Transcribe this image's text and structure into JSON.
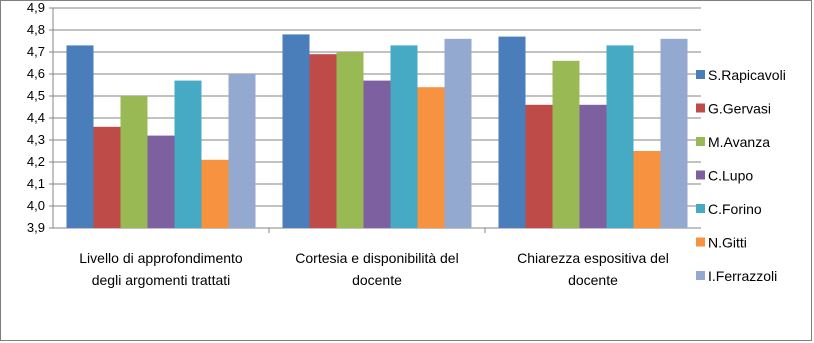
{
  "chart_data": {
    "type": "bar",
    "title": "",
    "xlabel": "",
    "ylabel": "",
    "ylim": [
      3.9,
      4.9
    ],
    "yticks": [
      "3,9",
      "4,0",
      "4,1",
      "4,2",
      "4,3",
      "4,4",
      "4,5",
      "4,6",
      "4,7",
      "4,8",
      "4,9"
    ],
    "grid": true,
    "legend_position": "right",
    "categories": [
      [
        "Livello di approfondimento",
        "degli argomenti trattati"
      ],
      [
        "Cortesia e disponibilità del",
        "docente"
      ],
      [
        "Chiarezza espositiva del",
        "docente"
      ]
    ],
    "series": [
      {
        "name": "S.Rapicavoli",
        "color": "#4a7ebb",
        "values": [
          4.73,
          4.78,
          4.77
        ]
      },
      {
        "name": "G.Gervasi",
        "color": "#be4b48",
        "values": [
          4.36,
          4.69,
          4.46
        ]
      },
      {
        "name": "M.Avanza",
        "color": "#98b954",
        "values": [
          4.5,
          4.7,
          4.66
        ]
      },
      {
        "name": "C.Lupo",
        "color": "#7d60a0",
        "values": [
          4.32,
          4.57,
          4.46
        ]
      },
      {
        "name": "C.Forino",
        "color": "#46aac5",
        "values": [
          4.57,
          4.73,
          4.73
        ]
      },
      {
        "name": "N.Gitti",
        "color": "#f69240",
        "values": [
          4.21,
          4.54,
          4.25
        ]
      },
      {
        "name": "I.Ferrazzoli",
        "color": "#93a9d0",
        "values": [
          4.6,
          4.76,
          4.76
        ]
      }
    ]
  }
}
